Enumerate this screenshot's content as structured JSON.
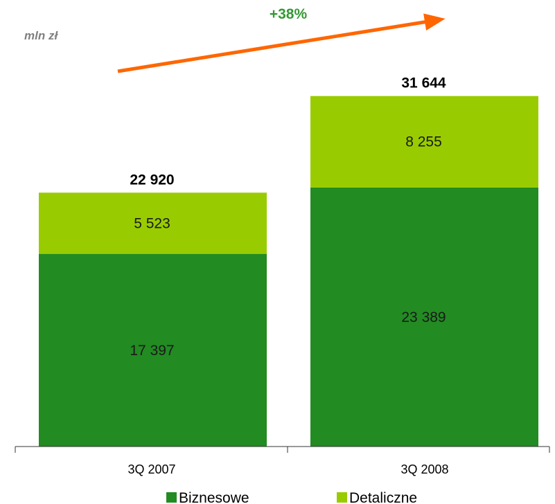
{
  "chart_data": {
    "type": "bar",
    "stacked": true,
    "unit_label": "mln zł",
    "categories": [
      "3Q 2007",
      "3Q 2008"
    ],
    "series": [
      {
        "name": "Biznesowe",
        "values": [
          17397,
          23389
        ],
        "value_labels": [
          "17 397",
          "23 389"
        ],
        "color": "#228b22"
      },
      {
        "name": "Detaliczne",
        "values": [
          5523,
          8255
        ],
        "value_labels": [
          "5 523",
          "8 255"
        ],
        "color": "#99cc00"
      }
    ],
    "totals": [
      22920,
      31644
    ],
    "total_labels": [
      "22 920",
      "31 644"
    ],
    "growth_label": "+38%",
    "ylim": [
      0,
      32000
    ],
    "grid": false,
    "legend_position": "bottom",
    "colors": {
      "growth_arrow": "#ff6600",
      "growth_text": "#339933",
      "unit_text": "#808080",
      "axis": "#333333"
    }
  }
}
